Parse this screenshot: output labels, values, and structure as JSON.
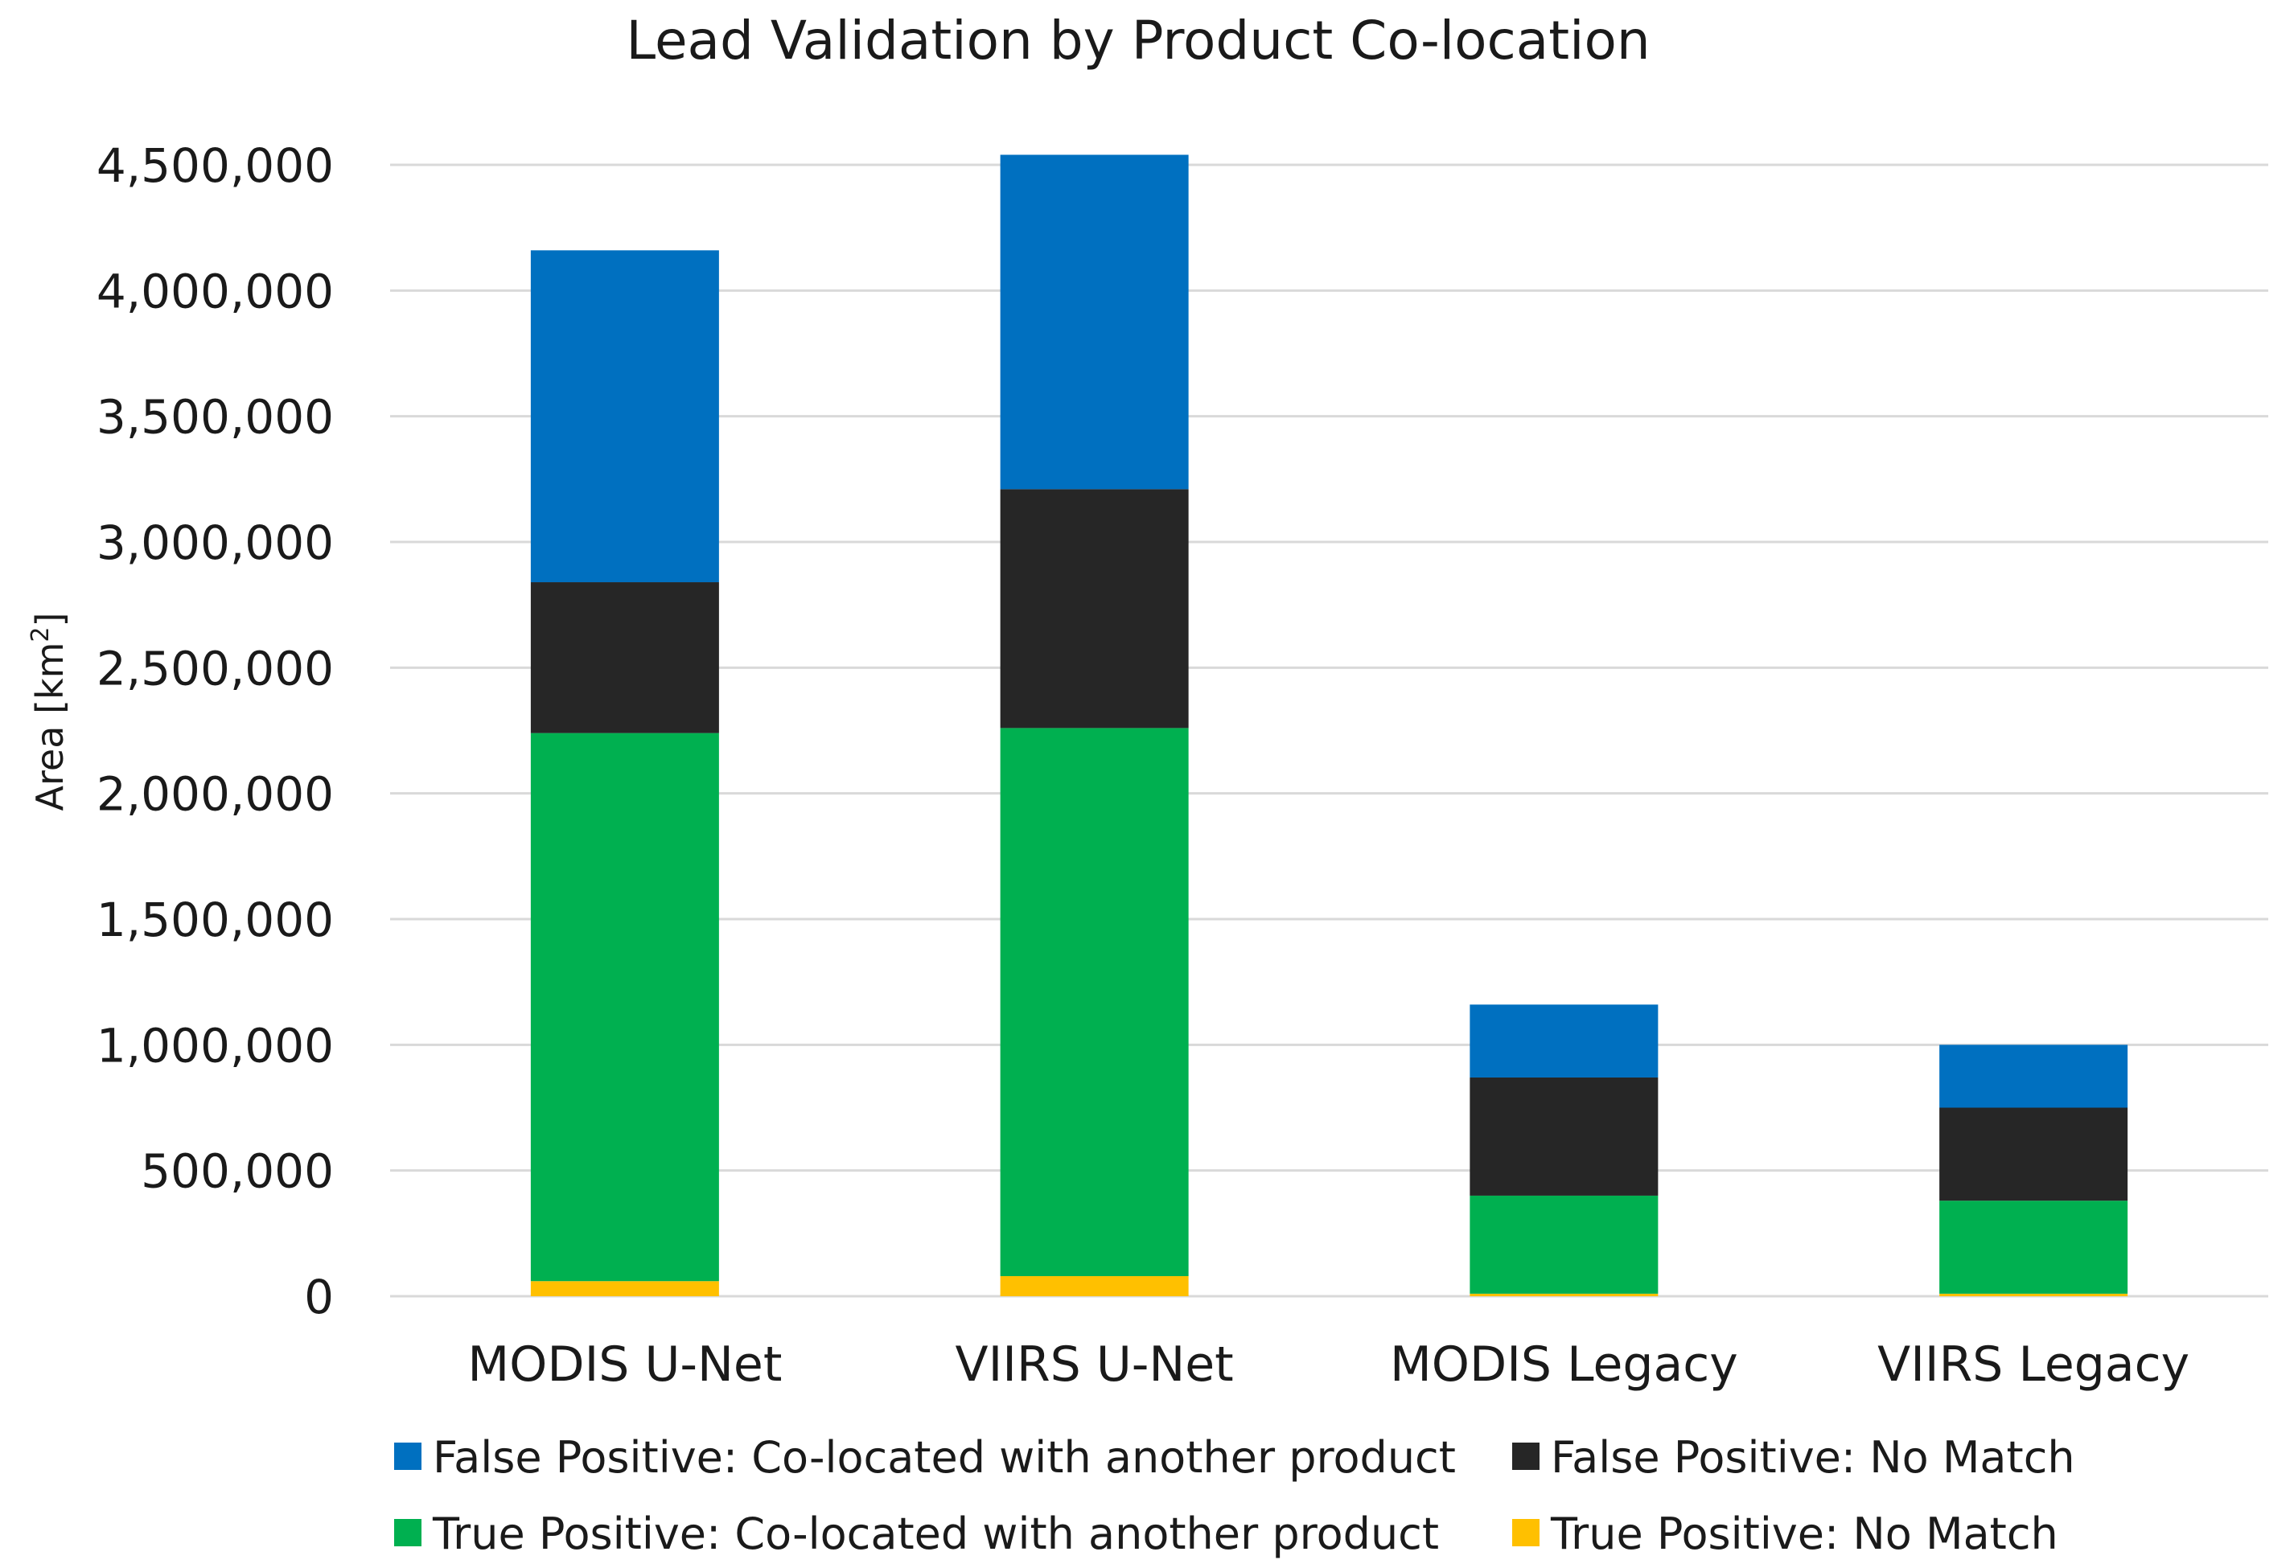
{
  "chart_data": {
    "type": "bar",
    "stacked": true,
    "title": "Lead Validation by Product Co-location",
    "xlabel": "",
    "ylabel": "Area [km",
    "ylabel_sup": "2",
    "ylabel_close": "]",
    "ylim": [
      0,
      4500000
    ],
    "ytick_values": [
      0,
      500000,
      1000000,
      1500000,
      2000000,
      2500000,
      3000000,
      3500000,
      4000000,
      4500000
    ],
    "ytick_labels": [
      "0",
      "500,000",
      "1,000,000",
      "1,500,000",
      "2,000,000",
      "2,500,000",
      "3,000,000",
      "3,500,000",
      "4,000,000",
      "4,500,000"
    ],
    "grid": true,
    "legend_position": "bottom",
    "categories": [
      "MODIS U-Net",
      "VIIRS U-Net",
      "MODIS Legacy",
      "VIIRS Legacy"
    ],
    "series": [
      {
        "name": "True Positive: No Match",
        "color": "#FFC000",
        "values": [
          60000,
          80000,
          10000,
          10000
        ]
      },
      {
        "name": "True Positive: Co-located with another product",
        "color": "#00B050",
        "values": [
          2180000,
          2180000,
          390000,
          370000
        ]
      },
      {
        "name": "False Positive: No Match",
        "color": "#262626",
        "values": [
          600000,
          950000,
          470000,
          370000
        ]
      },
      {
        "name": "False Positive: Co-located with another product",
        "color": "#0070C0",
        "values": [
          1320000,
          1330000,
          290000,
          250000
        ]
      }
    ],
    "legend_order": [
      "False Positive: Co-located with another product",
      "False Positive: No Match",
      "True Positive: Co-located with another product",
      "True Positive: No Match"
    ]
  }
}
